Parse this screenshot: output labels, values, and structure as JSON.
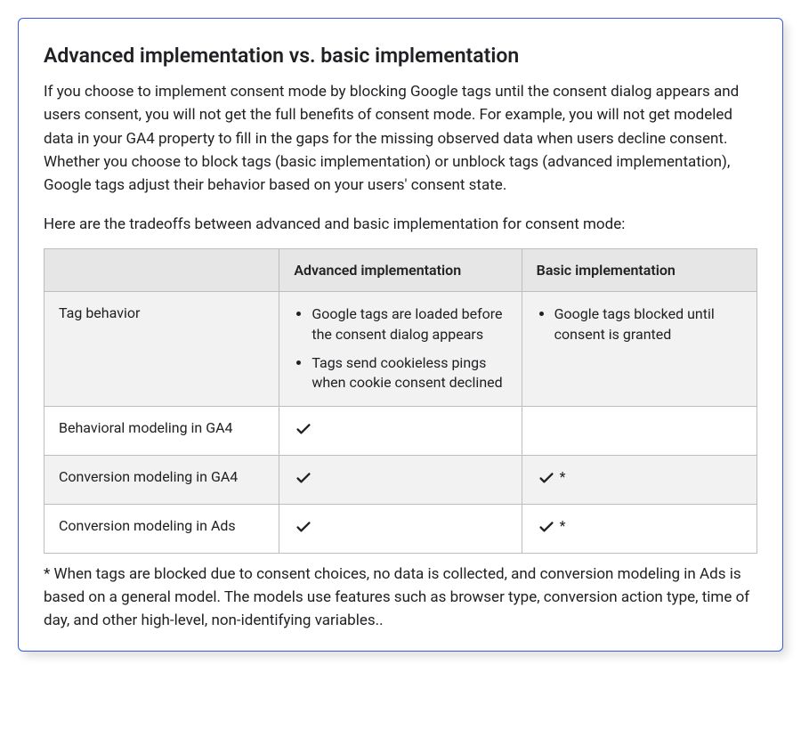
{
  "card": {
    "heading": "Advanced implementation vs. basic implementation",
    "paragraph": "If you choose to implement consent mode by blocking Google tags until the consent dialog appears and users consent, you will not get the full benefits of consent mode. For example, you will not get modeled data in your GA4 property to fill in the gaps for the missing observed data when users decline consent. Whether you choose to block tags (basic implementation) or unblock tags (advanced implementation), Google tags adjust their behavior based on your users' consent state.",
    "lead_in": "Here are the tradeoffs between advanced and basic implementation for consent mode:",
    "footnote": "* When tags are blocked due to consent choices, no data is collected, and conversion modeling in Ads is based on a general model. The models use features such as browser type, conversion action type, time of day, and other high-level, non-identifying variables.."
  },
  "table": {
    "type": "table",
    "border_color": "#bdbdbd",
    "header_bg": "#e6e6e6",
    "stripe_bg": "#f2f2f2",
    "check_color": "#202124",
    "columns": [
      "",
      "Advanced implementation",
      "Basic implementation"
    ],
    "rows": [
      {
        "label": "Tag behavior",
        "striped": true,
        "advanced": {
          "kind": "list",
          "items": [
            "Google tags are loaded before the consent dialog appears",
            "Tags send cookieless pings when cookie consent declined"
          ]
        },
        "basic": {
          "kind": "list",
          "items": [
            "Google tags blocked until consent is granted"
          ]
        }
      },
      {
        "label": "Behavioral modeling in GA4",
        "striped": false,
        "advanced": {
          "kind": "check",
          "note": ""
        },
        "basic": {
          "kind": "empty"
        }
      },
      {
        "label": "Conversion modeling in GA4",
        "striped": true,
        "advanced": {
          "kind": "check",
          "note": ""
        },
        "basic": {
          "kind": "check",
          "note": "*"
        }
      },
      {
        "label": "Conversion modeling in Ads",
        "striped": false,
        "advanced": {
          "kind": "check",
          "note": ""
        },
        "basic": {
          "kind": "check",
          "note": "*"
        }
      }
    ]
  }
}
